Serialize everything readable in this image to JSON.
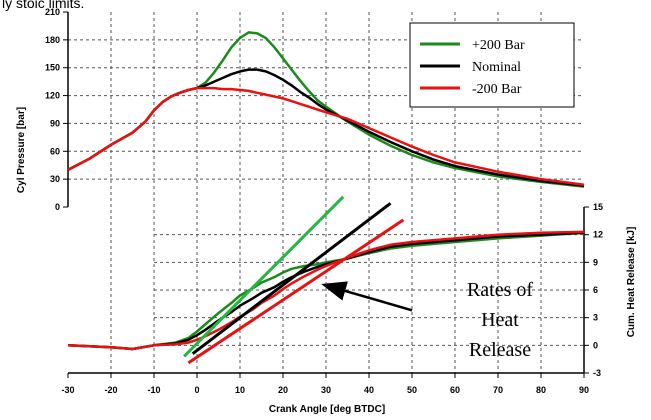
{
  "chart_data": {
    "type": "line",
    "header_text": "ly stoic limits.",
    "xlabel": "Crank Angle [deg BTDC]",
    "ylabel_left": "Cyl Pressure [bar]",
    "ylabel_right": "Cum. Heat Release [kJ]",
    "xlim": [
      -30,
      90
    ],
    "x_ticks": [
      "-30",
      "-20",
      "-10",
      "0",
      "10",
      "20",
      "30",
      "40",
      "50",
      "60",
      "70",
      "80",
      "90"
    ],
    "pressure_ylim": [
      0,
      210
    ],
    "pressure_ticks": [
      "0",
      "30",
      "60",
      "90",
      "120",
      "150",
      "180",
      "210"
    ],
    "heat_ylim": [
      -3,
      15
    ],
    "heat_ticks": [
      "-3",
      "0",
      "3",
      "6",
      "9",
      "12",
      "15"
    ],
    "grid": true,
    "legend_position": "top-right",
    "colors": {
      "green": "#1a8a1a",
      "black": "#000000",
      "red": "#e81010",
      "rate_green": "#1fb840"
    },
    "series": [
      {
        "name": "+200 Bar",
        "color": "#1a8a1a",
        "axis": "pressure",
        "x": [
          -30,
          -25,
          -20,
          -15,
          -12,
          -10,
          -8,
          -6,
          -4,
          -2,
          0,
          2,
          4,
          6,
          8,
          10,
          12,
          14,
          16,
          18,
          20,
          22,
          24,
          26,
          28,
          30,
          35,
          40,
          45,
          50,
          55,
          60,
          70,
          80,
          90
        ],
        "y": [
          40,
          52,
          67,
          80,
          92,
          104,
          113,
          119,
          123,
          126,
          128,
          134,
          145,
          158,
          172,
          182,
          188,
          187,
          182,
          172,
          160,
          148,
          136,
          125,
          115,
          108,
          92,
          78,
          66,
          56,
          48,
          42,
          33,
          27,
          22
        ]
      },
      {
        "name": "Nominal",
        "color": "#000000",
        "axis": "pressure",
        "x": [
          -30,
          -25,
          -20,
          -15,
          -12,
          -10,
          -8,
          -6,
          -4,
          -2,
          0,
          2,
          4,
          6,
          8,
          10,
          12,
          14,
          16,
          18,
          20,
          22,
          24,
          26,
          28,
          30,
          35,
          40,
          45,
          50,
          55,
          60,
          70,
          80,
          90
        ],
        "y": [
          40,
          52,
          67,
          80,
          92,
          104,
          113,
          119,
          123,
          126,
          128,
          131,
          135,
          139,
          143,
          146,
          148,
          148,
          146,
          142,
          137,
          131,
          124,
          118,
          111,
          105,
          93,
          81,
          70,
          60,
          51,
          44,
          35,
          28,
          23
        ]
      },
      {
        "name": "-200 Bar",
        "color": "#e81010",
        "axis": "pressure",
        "x": [
          -30,
          -25,
          -20,
          -15,
          -12,
          -10,
          -8,
          -6,
          -4,
          -2,
          0,
          2,
          4,
          6,
          8,
          10,
          12,
          14,
          16,
          18,
          20,
          22,
          24,
          26,
          28,
          30,
          35,
          40,
          45,
          50,
          55,
          60,
          70,
          80,
          90
        ],
        "y": [
          40,
          52,
          67,
          80,
          92,
          104,
          113,
          119,
          123,
          126,
          128,
          128,
          128,
          127,
          127,
          126,
          125,
          123,
          121,
          119,
          117,
          114,
          111,
          108,
          105,
          102,
          95,
          85,
          75,
          65,
          56,
          48,
          38,
          30,
          24
        ]
      },
      {
        "name": "",
        "color": "#1a8a1a",
        "axis": "heat",
        "x": [
          -30,
          -20,
          -15,
          -10,
          -5,
          -2,
          0,
          2,
          5,
          8,
          10,
          13,
          15,
          18,
          20,
          22,
          25,
          28,
          30,
          35,
          40,
          45,
          50,
          60,
          70,
          80,
          90
        ],
        "y": [
          0,
          -0.2,
          -0.4,
          0,
          0.3,
          0.8,
          1.5,
          2.3,
          3.5,
          4.6,
          5.4,
          6.2,
          6.8,
          7.4,
          7.9,
          8.3,
          8.6,
          8.8,
          9.0,
          9.4,
          10.0,
          10.5,
          10.8,
          11.2,
          11.6,
          11.9,
          12.2
        ]
      },
      {
        "name": "",
        "color": "#000000",
        "axis": "heat",
        "x": [
          -30,
          -20,
          -15,
          -10,
          -5,
          -2,
          0,
          2,
          5,
          8,
          10,
          13,
          15,
          18,
          20,
          22,
          25,
          28,
          30,
          35,
          40,
          45,
          50,
          60,
          70,
          80,
          90
        ],
        "y": [
          0,
          -0.2,
          -0.4,
          0,
          0.2,
          0.6,
          1.1,
          1.7,
          2.7,
          3.6,
          4.3,
          5.1,
          5.7,
          6.3,
          6.9,
          7.4,
          8.0,
          8.5,
          8.8,
          9.4,
          10.1,
          10.7,
          11.0,
          11.4,
          11.8,
          12.0,
          12.2
        ]
      },
      {
        "name": "",
        "color": "#e81010",
        "axis": "heat",
        "x": [
          -30,
          -20,
          -15,
          -10,
          -5,
          -2,
          0,
          2,
          5,
          8,
          10,
          13,
          15,
          18,
          20,
          22,
          25,
          28,
          30,
          35,
          40,
          45,
          50,
          60,
          70,
          80,
          90
        ],
        "y": [
          0,
          -0.2,
          -0.4,
          0,
          0.1,
          0.3,
          0.6,
          1.0,
          1.7,
          2.5,
          3.1,
          3.9,
          4.6,
          5.4,
          6.1,
          6.7,
          7.5,
          8.2,
          8.6,
          9.5,
          10.3,
          10.9,
          11.2,
          11.6,
          12.0,
          12.2,
          12.3
        ]
      }
    ],
    "rate_lines": [
      {
        "color": "#1fb840",
        "x": [
          -3,
          34
        ],
        "y": [
          -1.2,
          16.1
        ]
      },
      {
        "color": "#000000",
        "x": [
          -1,
          45
        ],
        "y": [
          -0.9,
          15.4
        ]
      },
      {
        "color": "#e81010",
        "x": [
          -2,
          48
        ],
        "y": [
          -1.9,
          13.6
        ]
      }
    ],
    "annotation": {
      "lines": [
        "Rates of",
        "Heat",
        "Release"
      ],
      "arrow_from": [
        50,
        3.8
      ],
      "arrow_to": [
        30,
        6.5
      ]
    }
  }
}
